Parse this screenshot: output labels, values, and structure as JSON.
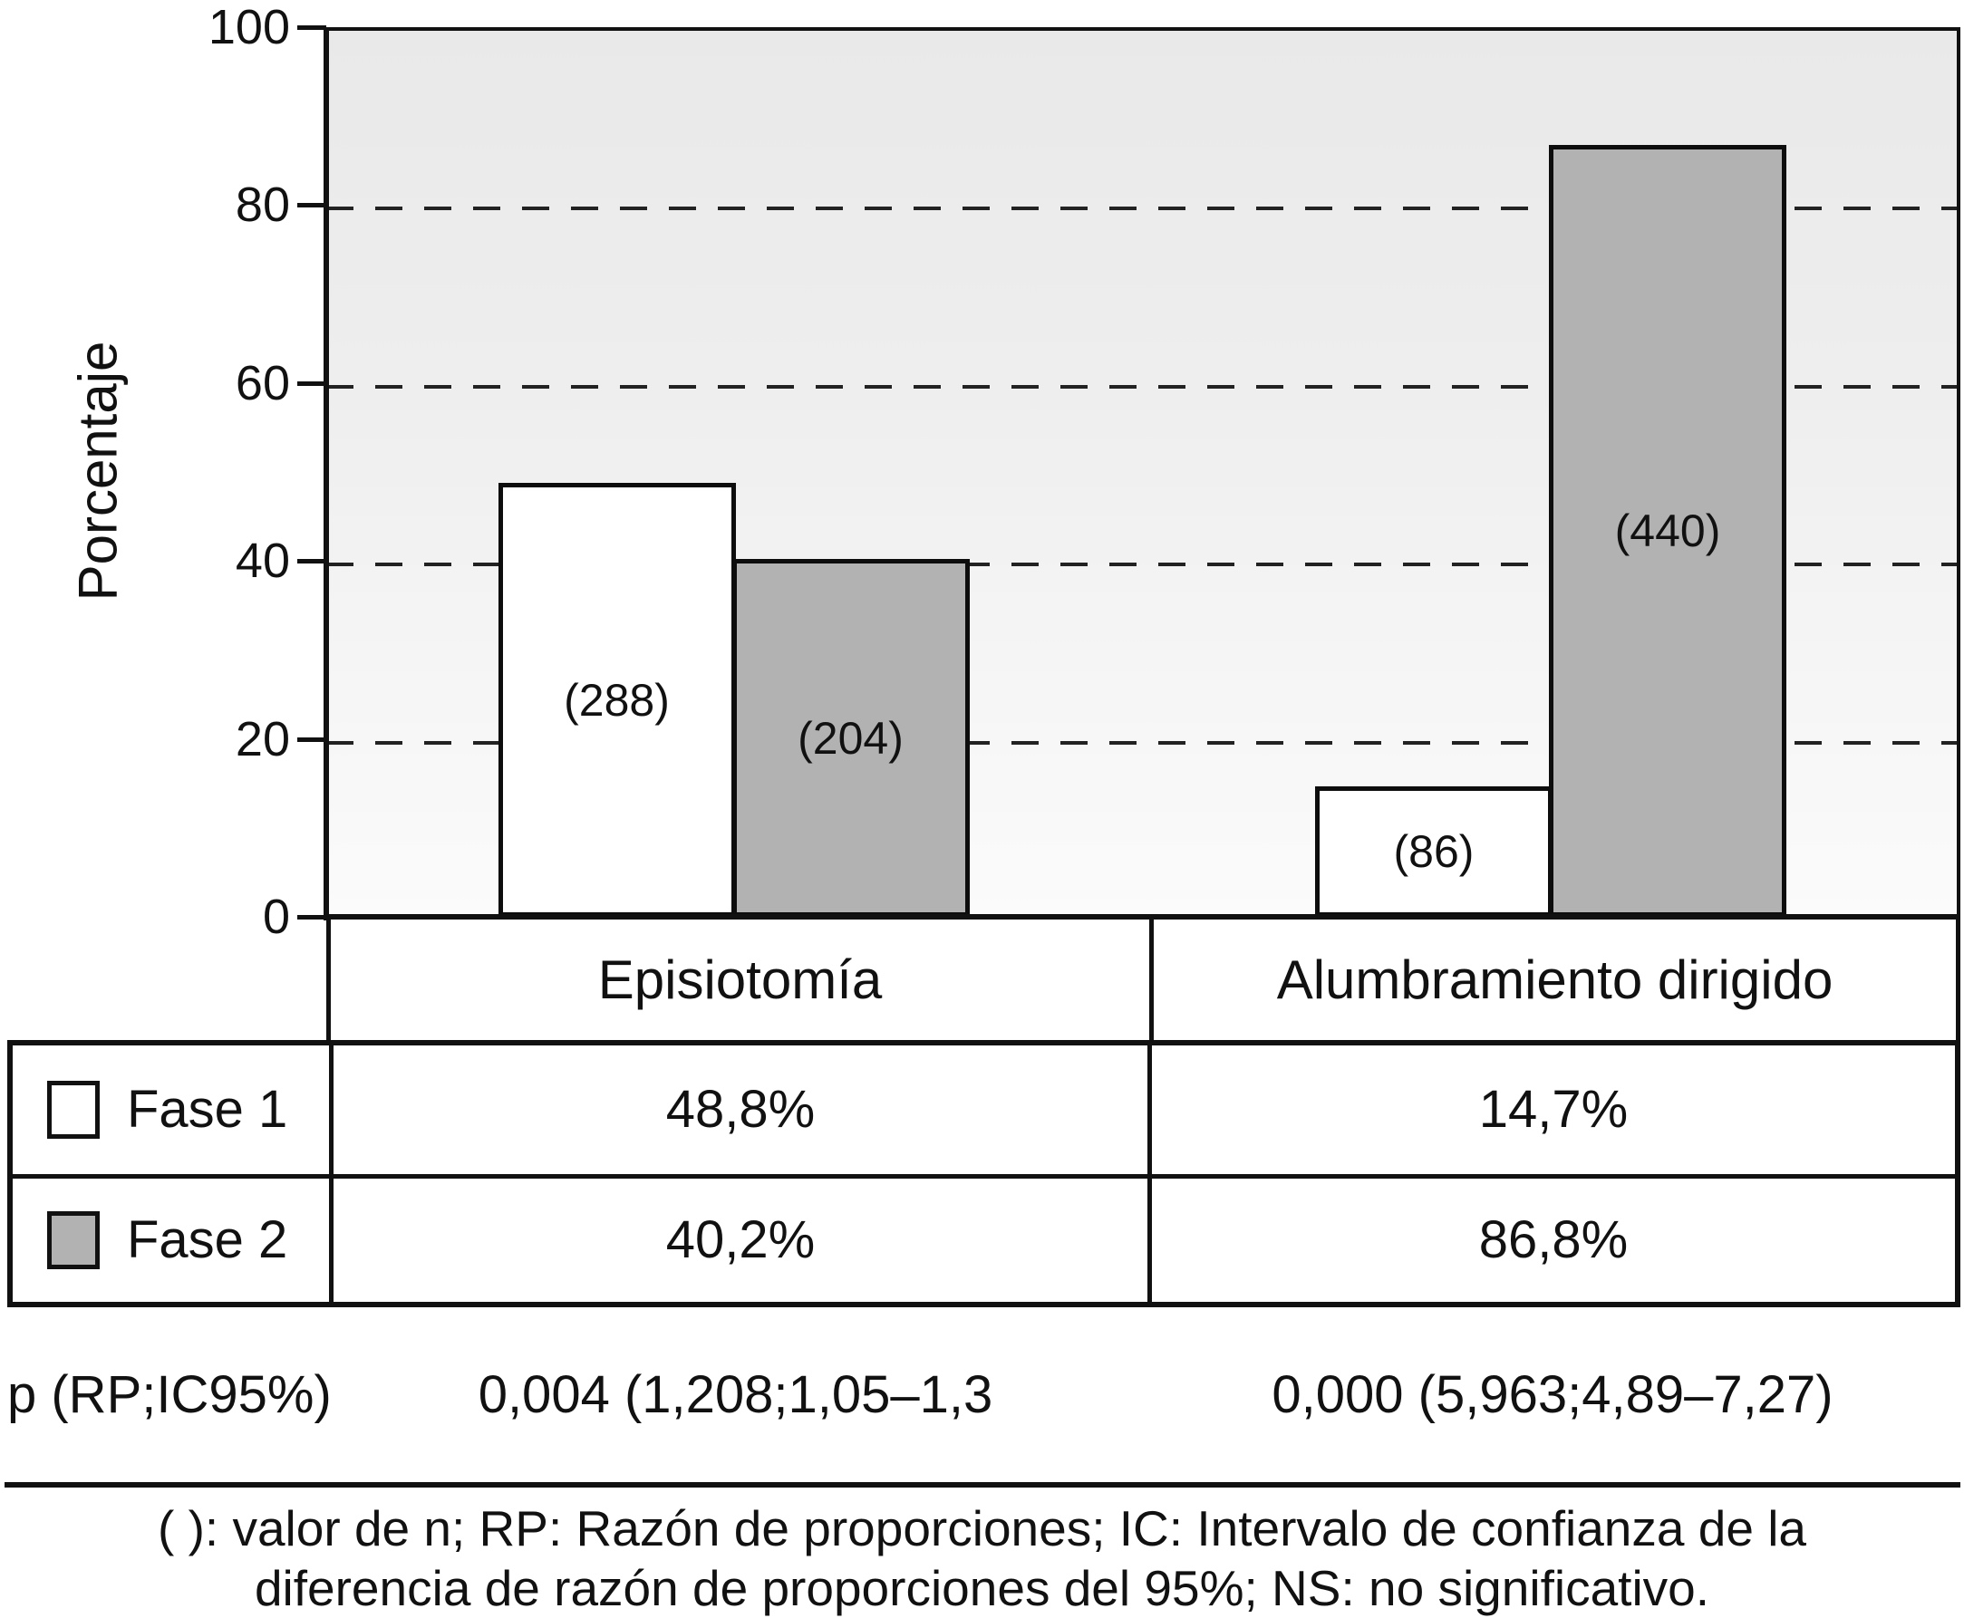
{
  "accent_colors": {
    "fase1_fill": "#ffffff",
    "fase2_fill": "#b2b2b2",
    "line_color": "#111111",
    "plot_bg_top": "#e9e9e9",
    "plot_bg_bottom": "#fbfbfb"
  },
  "chart_data": {
    "type": "bar",
    "title": "",
    "xlabel": "",
    "ylabel": "Porcentaje",
    "ylim": [
      0,
      100
    ],
    "yticks": [
      0,
      20,
      40,
      60,
      80,
      100
    ],
    "gridlines_at": [
      20,
      40,
      60,
      80
    ],
    "grid": "dashed-horizontal",
    "legend_position": "table-below-left",
    "categories": [
      "Episiotomía",
      "Alumbramiento dirigido"
    ],
    "series": [
      {
        "name": "Fase 1",
        "fill": "#ffffff",
        "values": [
          48.8,
          14.7
        ],
        "n": [
          288,
          86
        ],
        "bar_labels": [
          "(288)",
          "(86)"
        ]
      },
      {
        "name": "Fase 2",
        "fill": "#b2b2b2",
        "values": [
          40.2,
          86.8
        ],
        "n": [
          204,
          440
        ],
        "bar_labels": [
          "(204)",
          "(440)"
        ]
      }
    ]
  },
  "y_axis": {
    "title": "Porcentaje"
  },
  "table": {
    "category_headers": [
      "Episiotomía",
      "Alumbramiento dirigido"
    ],
    "rows": [
      {
        "legend": "Fase 1",
        "values": [
          "48,8%",
          "14,7%"
        ]
      },
      {
        "legend": "Fase 2",
        "values": [
          "40,2%",
          "86,8%"
        ]
      }
    ]
  },
  "p_row": {
    "label": "p (RP;IC95%)",
    "values": [
      "0,004 (1,208;1,05–1,3",
      "0,000 (5,963;4,89–7,27)"
    ]
  },
  "footnote": {
    "line1": "( ): valor de n; RP: Razón de proporciones; IC: Intervalo de confianza de la",
    "line2": "diferencia de razón de proporciones del 95%; NS: no significativo."
  }
}
